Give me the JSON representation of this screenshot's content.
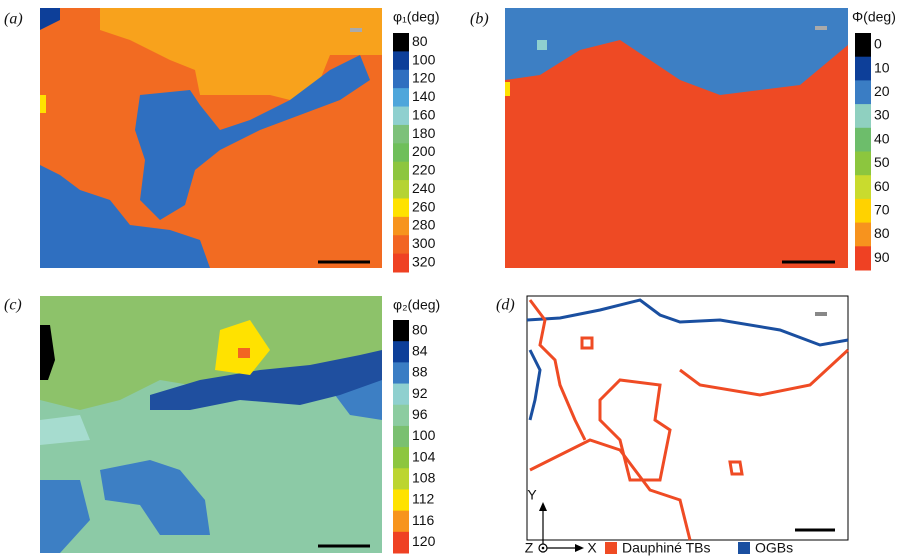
{
  "panels": [
    {
      "label": "(a)",
      "colorbar": {
        "title": "φ₁(deg)",
        "ticks": [
          80,
          100,
          120,
          140,
          160,
          180,
          200,
          220,
          240,
          260,
          280,
          300,
          320
        ],
        "colors": [
          "#000000",
          "#0d3f99",
          "#2f6fc0",
          "#4ea6db",
          "#8fd0cf",
          "#7dc17a",
          "#6fbf5a",
          "#8dc63f",
          "#b5d334",
          "#ffe200",
          "#f7941d",
          "#f26522",
          "#ef4123"
        ]
      }
    },
    {
      "label": "(b)",
      "colorbar": {
        "title": "Φ(deg)",
        "ticks": [
          0,
          10,
          20,
          30,
          40,
          50,
          60,
          70,
          80,
          90
        ],
        "colors": [
          "#000000",
          "#0d3f99",
          "#3a7dc4",
          "#8fd0c0",
          "#6dbd6b",
          "#8cc63e",
          "#c9db2e",
          "#ffd200",
          "#f7931e",
          "#ef4123"
        ]
      }
    },
    {
      "label": "(c)",
      "colorbar": {
        "title": "φ₂(deg)",
        "ticks": [
          80,
          84,
          88,
          92,
          96,
          100,
          104,
          108,
          112,
          116,
          120
        ],
        "colors": [
          "#000000",
          "#0d3f99",
          "#3a7dc4",
          "#8fd0cf",
          "#8ccca0",
          "#7ac070",
          "#8dc63f",
          "#bcd530",
          "#ffe200",
          "#f7941d",
          "#ef4123"
        ]
      }
    },
    {
      "label": "(d)",
      "axes": [
        "Y",
        "Z",
        "X"
      ],
      "legend": [
        {
          "name": "Dauphiné TBs",
          "color": "#ef4b24"
        },
        {
          "name": "OGBs",
          "color": "#1a4fa0"
        }
      ]
    }
  ]
}
